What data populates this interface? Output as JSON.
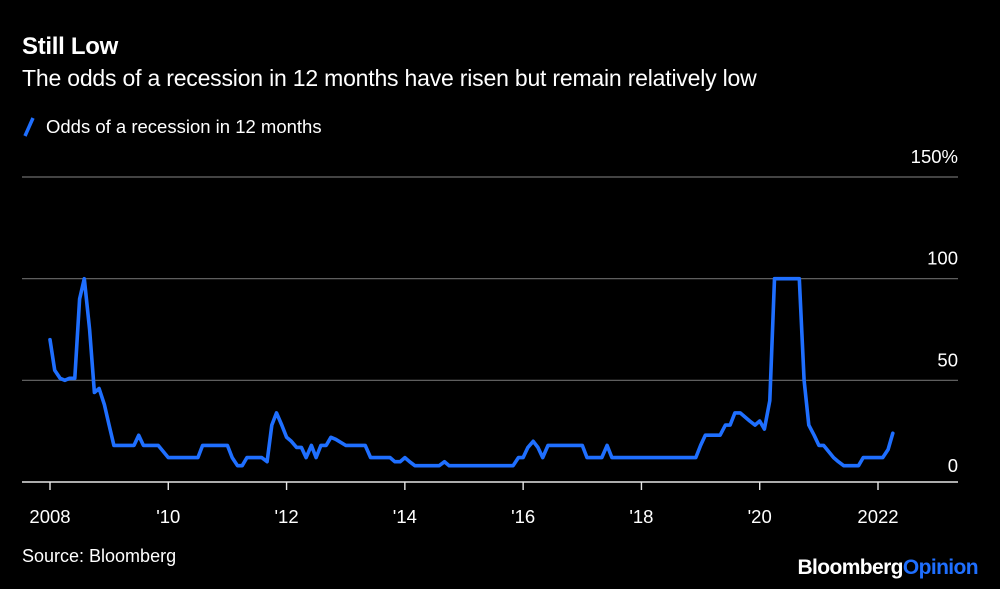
{
  "title": "Still Low",
  "subtitle": "The odds of a recession in 12 months have risen but remain relatively low",
  "legend": {
    "label": "Odds of a recession in 12 months"
  },
  "source": "Source: Bloomberg",
  "brand": {
    "part1": "Bloomberg",
    "part2": "Opinion"
  },
  "colors": {
    "background": "#000000",
    "line": "#1F6FFF",
    "grid": "#6b6b6b",
    "axis": "#e6e6e6",
    "text": "#ffffff"
  },
  "chart_data": {
    "type": "line",
    "title": "Still Low",
    "subtitle": "The odds of a recession in 12 months have risen but remain relatively low",
    "xlabel": "",
    "ylabel": "",
    "xlim": [
      2008.0,
      2022.8
    ],
    "ylim": [
      0,
      150
    ],
    "grid": true,
    "legend_position": "top-left",
    "y_ticks": [
      {
        "value": 0,
        "label": "0"
      },
      {
        "value": 50,
        "label": "50"
      },
      {
        "value": 100,
        "label": "100"
      },
      {
        "value": 150,
        "label": "150%"
      }
    ],
    "x_ticks": [
      {
        "value": 2008,
        "label": "2008"
      },
      {
        "value": 2010,
        "label": "'10"
      },
      {
        "value": 2012,
        "label": "'12"
      },
      {
        "value": 2014,
        "label": "'14"
      },
      {
        "value": 2016,
        "label": "'16"
      },
      {
        "value": 2018,
        "label": "'18"
      },
      {
        "value": 2020,
        "label": "'20"
      },
      {
        "value": 2022,
        "label": "2022"
      }
    ],
    "series": [
      {
        "name": "Odds of a recession in 12 months",
        "color": "#1F6FFF",
        "x": [
          2008.0,
          2008.08,
          2008.17,
          2008.25,
          2008.33,
          2008.42,
          2008.5,
          2008.58,
          2008.67,
          2008.75,
          2008.83,
          2008.92,
          2009.0,
          2009.08,
          2009.17,
          2009.25,
          2009.42,
          2009.5,
          2009.58,
          2009.67,
          2009.75,
          2009.83,
          2010.0,
          2010.08,
          2010.5,
          2010.58,
          2010.67,
          2010.92,
          2011.0,
          2011.08,
          2011.17,
          2011.25,
          2011.33,
          2011.58,
          2011.67,
          2011.75,
          2011.83,
          2011.92,
          2012.0,
          2012.08,
          2012.17,
          2012.25,
          2012.33,
          2012.42,
          2012.5,
          2012.58,
          2012.67,
          2012.75,
          2012.83,
          2013.0,
          2013.33,
          2013.42,
          2013.5,
          2013.75,
          2013.83,
          2013.92,
          2014.0,
          2014.08,
          2014.17,
          2014.58,
          2014.67,
          2014.75,
          2015.0,
          2015.83,
          2015.92,
          2016.0,
          2016.08,
          2016.17,
          2016.25,
          2016.33,
          2016.42,
          2017.0,
          2017.08,
          2017.33,
          2017.42,
          2017.5,
          2018.0,
          2018.5,
          2018.92,
          2019.0,
          2019.08,
          2019.33,
          2019.42,
          2019.5,
          2019.58,
          2019.67,
          2019.83,
          2019.92,
          2020.0,
          2020.08,
          2020.17,
          2020.25,
          2020.33,
          2020.5,
          2020.67,
          2020.75,
          2020.83,
          2020.92,
          2021.0,
          2021.08,
          2021.25,
          2021.33,
          2021.42,
          2021.5,
          2021.58,
          2021.67,
          2021.75,
          2021.83,
          2021.92,
          2022.0,
          2022.08,
          2022.17,
          2022.25
        ],
        "values": [
          70,
          55,
          51,
          50,
          51,
          51,
          90,
          100,
          75,
          44,
          46,
          38,
          28,
          18,
          18,
          18,
          18,
          23,
          18,
          18,
          18,
          18,
          12,
          12,
          12,
          18,
          18,
          18,
          18,
          12,
          8,
          8,
          12,
          12,
          10,
          28,
          34,
          28,
          22,
          20,
          17,
          17,
          12,
          18,
          12,
          18,
          18,
          22,
          21,
          18,
          18,
          12,
          12,
          12,
          10,
          10,
          12,
          10,
          8,
          8,
          10,
          8,
          8,
          8,
          12,
          12,
          17,
          20,
          17,
          12,
          18,
          18,
          12,
          12,
          18,
          12,
          12,
          12,
          12,
          18,
          23,
          23,
          28,
          28,
          34,
          34,
          30,
          28,
          30,
          26,
          40,
          100,
          100,
          100,
          100,
          50,
          28,
          23,
          18,
          18,
          12,
          10,
          8,
          8,
          8,
          8,
          12,
          12,
          12,
          12,
          12,
          16,
          24
        ]
      }
    ]
  }
}
